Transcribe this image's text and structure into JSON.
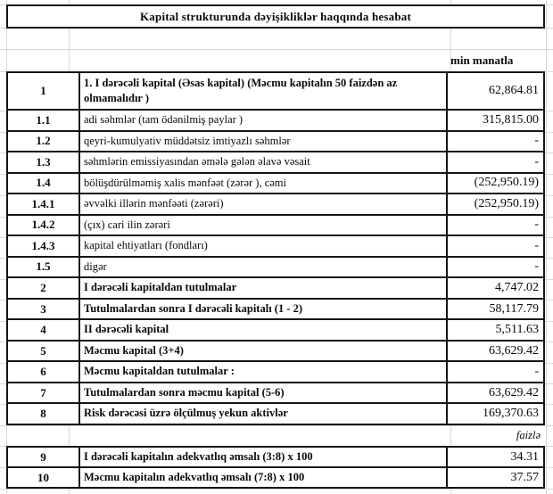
{
  "title": "Kapital strukturunda dəyişikliklər haqqında hesabat",
  "unit_label": "min manatla",
  "percent_label": "faizlə",
  "table": {
    "rows": [
      {
        "no": "1",
        "label": "1. I dərəcəli kapital (Əsas kapital) (Məcmu kapitalın 50 faizdən  az olmamalıdır )",
        "value": "62,864.81"
      },
      {
        "no": "1.1",
        "label": "adi səhmlər (tam ödənilmiş paylar )",
        "value": "315,815.00"
      },
      {
        "no": "1.2",
        "label": "qeyri-kumulyativ müddətsiz imtiyazlı səhmlər",
        "value": "-"
      },
      {
        "no": "1.3",
        "label": "səhmlərin emissiyasından əmələ gələn  əlavə vəsait",
        "value": "-"
      },
      {
        "no": "1.4",
        "label": "bölüşdürülməmiş xalis mənfəət (zərər ), cəmi",
        "value": "(252,950.19)"
      },
      {
        "no": "1.4.1",
        "label": "əvvəlki illərin mənfəəti (zərəri)",
        "value": "(252,950.19)"
      },
      {
        "no": "1.4.2",
        "label": "(çıx) cari ilin zərəri",
        "value": "-"
      },
      {
        "no": "1.4.3",
        "label": "kapital ehtiyatları (fondları)",
        "value": "-"
      },
      {
        "no": "1.5",
        "label": "digər",
        "value": "-"
      },
      {
        "no": "2",
        "label": "I dərəcəli kapitaldan  tutulmalar",
        "value": "4,747.02"
      },
      {
        "no": "3",
        "label": "Tutulmalardan  sonra I dərəcəli kapitalı (1 - 2)",
        "value": "58,117.79"
      },
      {
        "no": "4",
        "label": "II dərəcəli  kapital",
        "value": "5,511.63"
      },
      {
        "no": "5",
        "label": "Məcmu kapital (3+4)",
        "value": "63,629.42"
      },
      {
        "no": "6",
        "label": "Məcmu kapitaldan tutulmalar :",
        "value": "-"
      },
      {
        "no": "7",
        "label": "Tutulmalardan sonra məcmu kapital (5-6)",
        "value": "63,629.42"
      },
      {
        "no": "8",
        "label": "Risk dərəcəsi üzrə ölçülmuş  yekun aktivlər",
        "value": "169,370.63"
      }
    ],
    "ratio_rows": [
      {
        "no": "9",
        "label": "I dərəcəli  kapitalın  adekvatlıq əmsalı (3:8) x 100",
        "value": "34.31"
      },
      {
        "no": "10",
        "label": "Məcmu kapitalın  adekvatlıq  əmsalı (7:8) x 100",
        "value": "37.57"
      }
    ]
  },
  "colors": {
    "border": "#151515",
    "gridline": "#d7d7d7",
    "text": "#0a0a0a",
    "background": "#ffffff"
  }
}
